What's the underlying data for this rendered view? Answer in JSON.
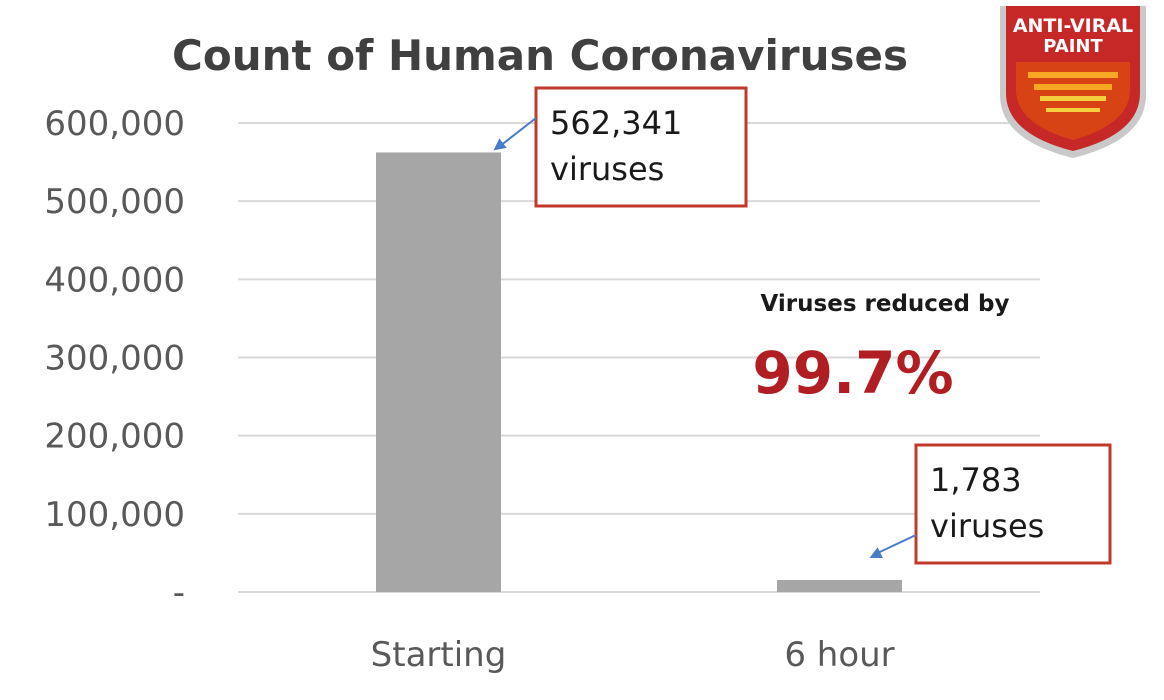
{
  "chart_data": {
    "type": "bar",
    "title": "Count of Human Coronaviruses",
    "categories": [
      "Starting",
      "6 hour"
    ],
    "values": [
      562341,
      1783
    ],
    "ylim": [
      0,
      600000
    ],
    "yticks": [
      0,
      100000,
      200000,
      300000,
      400000,
      500000,
      600000
    ],
    "ytick_labels": [
      "-",
      "100,000",
      "200,000",
      "300,000",
      "400,000",
      "500,000",
      "600,000"
    ],
    "grid": true,
    "legend": "none",
    "bar_color": "#a6a6a6",
    "annotations": [
      {
        "category": "Starting",
        "lines": [
          "562,341",
          "viruses"
        ]
      },
      {
        "category": "6 hour",
        "lines": [
          "1,783",
          "viruses"
        ]
      }
    ],
    "reduction": {
      "label": "Viruses reduced by",
      "value": "99.7%",
      "color": "#b01e23"
    }
  },
  "badge": {
    "line1": "ANTI-VIRAL",
    "line2": "PAINT"
  },
  "colors": {
    "callout_border": "#c0392b",
    "arrow": "#4a7cc7",
    "gridline": "#d9d9d9"
  }
}
